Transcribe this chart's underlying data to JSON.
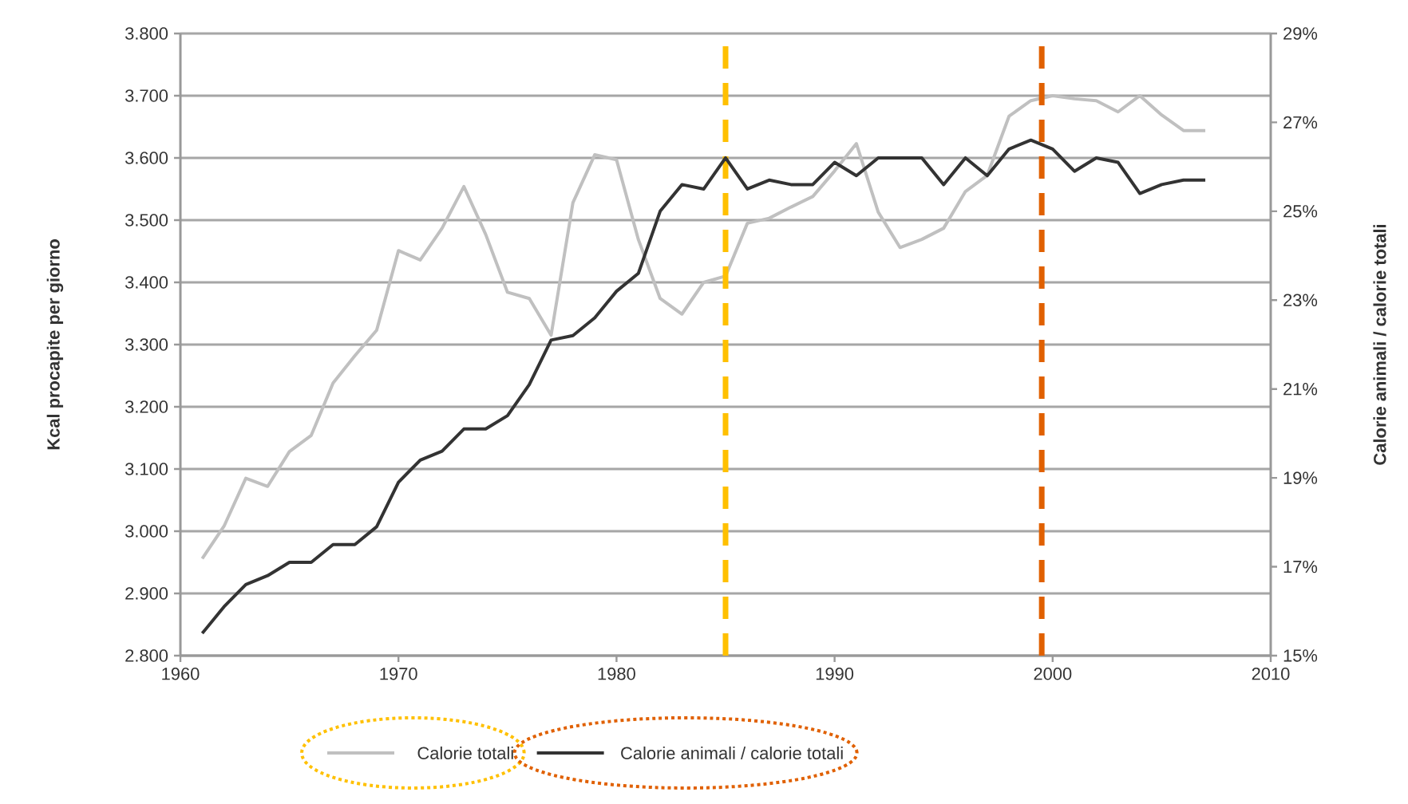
{
  "chart_data": {
    "type": "line",
    "ylabel": "Kcal procapite per giorno",
    "y2label": "Calorie animali / calorie totali",
    "x": [
      1961,
      1962,
      1963,
      1964,
      1965,
      1966,
      1967,
      1968,
      1969,
      1970,
      1971,
      1972,
      1973,
      1974,
      1975,
      1976,
      1977,
      1978,
      1979,
      1980,
      1981,
      1982,
      1983,
      1984,
      1985,
      1986,
      1987,
      1988,
      1989,
      1990,
      1991,
      1992,
      1993,
      1994,
      1995,
      1996,
      1997,
      1998,
      1999,
      2000,
      2001,
      2002,
      2003,
      2004,
      2005,
      2006,
      2007
    ],
    "series": [
      {
        "name": "Calorie totali",
        "color": "#c0c0c0",
        "values": [
          2956,
          3008,
          3085,
          3072,
          3128,
          3154,
          3238,
          3282,
          3323,
          3451,
          3436,
          3487,
          3554,
          3477,
          3384,
          3374,
          3315,
          3528,
          3605,
          3597,
          3469,
          3374,
          3349,
          3400,
          3410,
          3495,
          3503,
          3521,
          3538,
          3579,
          3623,
          3513,
          3456,
          3469,
          3487,
          3546,
          3572,
          3667,
          3692,
          3700,
          3695,
          3692,
          3674,
          3700,
          3669,
          3644,
          3644
        ]
      },
      {
        "name": "Calorie animali / calorie totali",
        "color": "#333333",
        "axis": "y2",
        "values": [
          15.5,
          16.1,
          16.6,
          16.8,
          17.1,
          17.1,
          17.5,
          17.5,
          17.9,
          18.9,
          19.4,
          19.6,
          20.1,
          20.1,
          20.4,
          21.1,
          22.1,
          22.2,
          22.6,
          23.2,
          23.6,
          25.0,
          25.6,
          25.5,
          26.2,
          25.5,
          25.7,
          25.6,
          25.6,
          26.1,
          25.8,
          26.2,
          26.2,
          26.2,
          25.6,
          26.2,
          25.8,
          26.4,
          26.6,
          26.4,
          25.9,
          26.2,
          26.1,
          25.4,
          25.6,
          25.7,
          25.7
        ]
      }
    ],
    "xlim": [
      1960,
      2010
    ],
    "xticks": [
      1960,
      1970,
      1980,
      1990,
      2000,
      2010
    ],
    "ylim": [
      2800,
      3800
    ],
    "yticks": [
      {
        "value": 2800,
        "label": "2.800"
      },
      {
        "value": 2900,
        "label": "2.900"
      },
      {
        "value": 3000,
        "label": "3.000"
      },
      {
        "value": 3100,
        "label": "3.100"
      },
      {
        "value": 3200,
        "label": "3.200"
      },
      {
        "value": 3300,
        "label": "3.300"
      },
      {
        "value": 3400,
        "label": "3.400"
      },
      {
        "value": 3500,
        "label": "3.500"
      },
      {
        "value": 3600,
        "label": "3.600"
      },
      {
        "value": 3700,
        "label": "3.700"
      },
      {
        "value": 3800,
        "label": "3.800"
      }
    ],
    "y2lim": [
      15,
      29
    ],
    "y2ticks": [
      {
        "value": 15,
        "label": "15%"
      },
      {
        "value": 17,
        "label": "17%"
      },
      {
        "value": 19,
        "label": "19%"
      },
      {
        "value": 21,
        "label": "21%"
      },
      {
        "value": 23,
        "label": "23%"
      },
      {
        "value": 25,
        "label": "25%"
      },
      {
        "value": 27,
        "label": "27%"
      },
      {
        "value": 29,
        "label": "29%"
      }
    ],
    "ref_lines": [
      {
        "axis": "x",
        "value": 1985,
        "color": "#ffc000",
        "line_style": "dashed"
      },
      {
        "axis": "x",
        "value": 1999.5,
        "color": "#e06000",
        "line_style": "dashed"
      }
    ],
    "grid": "y",
    "legend": "bottom",
    "marker": "none",
    "line_style": "solid"
  }
}
